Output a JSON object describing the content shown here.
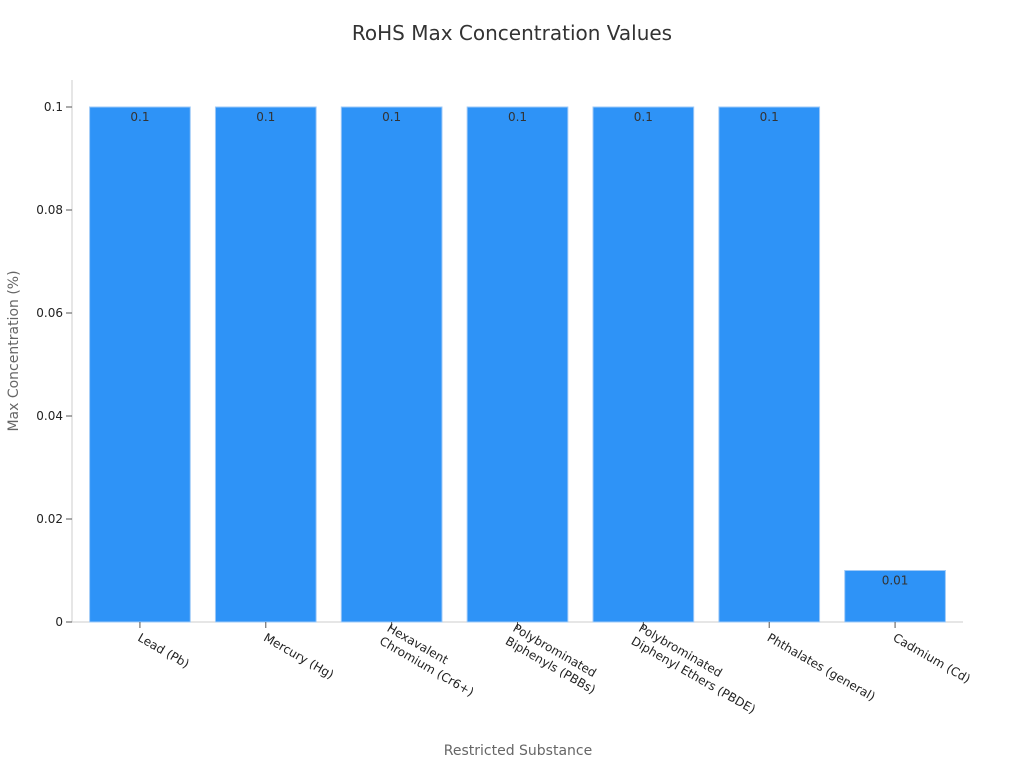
{
  "chart_data": {
    "type": "bar",
    "title": "RoHS Max Concentration Values",
    "xlabel": "Restricted Substance",
    "ylabel": "Max Concentration (%)",
    "categories": [
      "Lead (Pb)",
      "Mercury (Hg)",
      "Hexavalent Chromium (Cr6+)",
      "Polybrominated Biphenyls (PBBs)",
      "Polybrominated Diphenyl Ethers (PBDE)",
      "Phthalates (general)",
      "Cadmium (Cd)"
    ],
    "category_label_lines": [
      [
        "Lead (Pb)"
      ],
      [
        "Mercury (Hg)"
      ],
      [
        "Hexavalent",
        "Chromium (Cr6+)"
      ],
      [
        "Polybrominated",
        "Biphenyls (PBBs)"
      ],
      [
        "Polybrominated",
        "Diphenyl Ethers (PBDE)"
      ],
      [
        "Phthalates (general)"
      ],
      [
        "Cadmium (Cd)"
      ]
    ],
    "values": [
      0.1,
      0.1,
      0.1,
      0.1,
      0.1,
      0.1,
      0.01
    ],
    "data_labels": [
      "0.1",
      "0.1",
      "0.1",
      "0.1",
      "0.1",
      "0.1",
      "0.01"
    ],
    "ylim": [
      0,
      0.1
    ],
    "yticks": [
      0,
      0.02,
      0.04,
      0.06,
      0.08,
      0.1
    ],
    "ytick_labels": [
      "0",
      "0.02",
      "0.04",
      "0.06",
      "0.08",
      "0.1"
    ],
    "grid": false,
    "legend": "none",
    "colors": {
      "bar": "#2E93F7"
    }
  }
}
